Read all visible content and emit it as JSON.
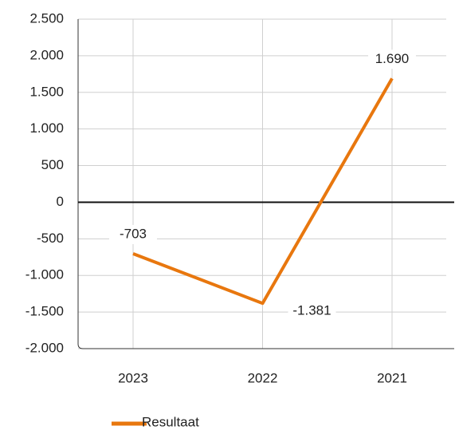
{
  "chart_data": {
    "type": "line",
    "categories": [
      "2023",
      "2022",
      "2021"
    ],
    "series": [
      {
        "name": "Resultaat",
        "color": "#e8770e",
        "values": [
          -703,
          -1381,
          1690
        ],
        "value_labels": [
          "-703",
          "-1.381",
          "1.690"
        ]
      }
    ],
    "ylim": [
      -2000,
      2500
    ],
    "yticks": [
      {
        "value": -2000,
        "label": "-2.000"
      },
      {
        "value": -1500,
        "label": "-1.500"
      },
      {
        "value": -1000,
        "label": "-1.000"
      },
      -500,
      0,
      500,
      {
        "value": 1000,
        "label": "1.000"
      },
      {
        "value": 1500,
        "label": "1.500"
      },
      {
        "value": 2000,
        "label": "2.000"
      },
      {
        "value": 2500,
        "label": "2.500"
      }
    ],
    "grid": true,
    "legend": "bottom"
  }
}
